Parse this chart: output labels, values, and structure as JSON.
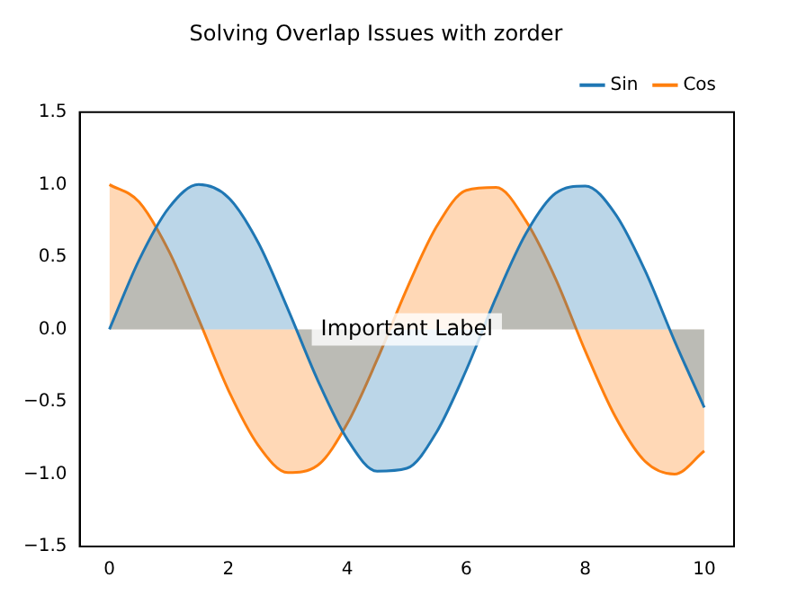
{
  "chart_data": {
    "type": "area",
    "title": "Solving Overlap Issues with zorder",
    "x": [
      0,
      0.5,
      1,
      1.5,
      2,
      2.5,
      3,
      3.5,
      4,
      4.5,
      5,
      5.5,
      6,
      6.5,
      7,
      7.5,
      8,
      8.5,
      9,
      9.5,
      10
    ],
    "series": [
      {
        "name": "Sin",
        "color": "#1f77b4",
        "values": [
          0,
          0.48,
          0.84,
          1.0,
          0.91,
          0.6,
          0.14,
          -0.35,
          -0.76,
          -0.98,
          -0.96,
          -0.71,
          -0.28,
          0.22,
          0.66,
          0.94,
          0.99,
          0.8,
          0.41,
          -0.08,
          -0.54
        ]
      },
      {
        "name": "Cos",
        "color": "#ff7f0e",
        "values": [
          1,
          0.88,
          0.54,
          0.07,
          -0.42,
          -0.8,
          -0.99,
          -0.94,
          -0.65,
          -0.21,
          0.28,
          0.71,
          0.96,
          0.98,
          0.75,
          0.35,
          -0.15,
          -0.6,
          -0.91,
          -1.0,
          -0.84
        ]
      }
    ],
    "xlim": [
      -0.5,
      10.5
    ],
    "xticks": [
      0,
      2,
      4,
      6,
      8,
      10
    ],
    "ylim": [
      -1.5,
      1.5
    ],
    "yticks": [
      {
        "value": -1.5,
        "label": "−1.5"
      },
      {
        "value": -1,
        "label": "−1.0"
      },
      {
        "value": -0.5,
        "label": "−0.5"
      },
      {
        "value": 0,
        "label": "0.0"
      },
      {
        "value": 0.5,
        "label": "0.5"
      },
      {
        "value": 1,
        "label": "1.0"
      },
      {
        "value": 1.5,
        "label": "1.5"
      }
    ],
    "legend": "top right",
    "annotations": [
      "Important Label"
    ]
  }
}
